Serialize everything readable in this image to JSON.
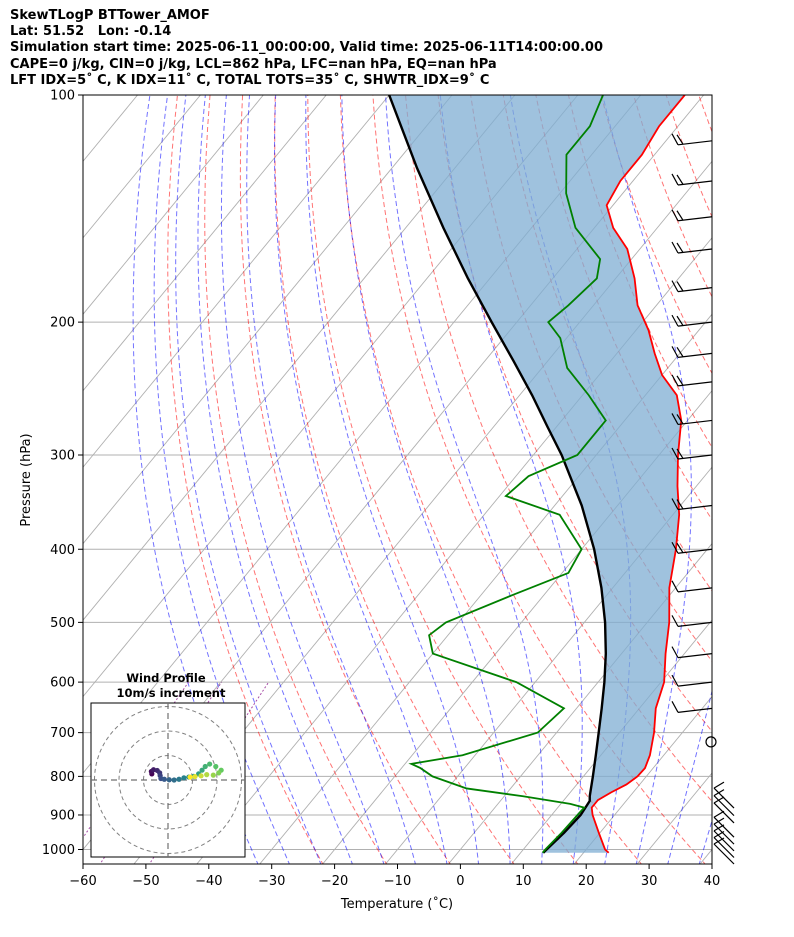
{
  "header": {
    "title": "SkewTLogP BTTower_AMOF",
    "location": "Lat: 51.52   Lon: -0.14",
    "times": "Simulation start time: 2025-06-11_00:00:00, Valid time: 2025-06-11T14:00:00.00",
    "indices1": "CAPE=0 j/kg, CIN=0 j/kg, LCL=862 hPa, LFC=nan hPa, EQ=nan hPa",
    "indices2": "LFT IDX=5˚ C, K IDX=11˚ C, TOTAL TOTS=35˚ C, SHWTR_IDX=9˚ C"
  },
  "chart_data": [
    {
      "type": "line",
      "subtype": "skew-t log-p diagram",
      "xlabel": "Temperature (˚C)",
      "ylabel": "Pressure (hPa)",
      "xlim": [
        -60,
        40
      ],
      "ylim": [
        1050,
        100
      ],
      "y_scale": "log",
      "x_ticks": [
        -60,
        -50,
        -40,
        -30,
        -20,
        -10,
        0,
        10,
        20,
        30,
        40
      ],
      "x_tick_labels": [
        "−60",
        "−50",
        "−40",
        "−30",
        "−20",
        "−10",
        "0",
        "10",
        "20",
        "30",
        "40"
      ],
      "y_ticks": [
        1000,
        900,
        800,
        700,
        600,
        500,
        400,
        300,
        200,
        100
      ],
      "y_tick_labels": [
        "1000",
        "900",
        "800",
        "700",
        "600",
        "500",
        "400",
        "300",
        "200",
        "100"
      ],
      "grid": true,
      "shaded_region": "CAPE/CIN area between temperature and parcel path",
      "colors": {
        "temperature": "#ff0000",
        "dewpoint": "#008000",
        "parcel": "#000000",
        "shade": "#7fadd3",
        "dry_adiabats": "#ff0000",
        "moist_adiabats": "#0000ff",
        "mixing_ratio": "#800080",
        "isotherms": "#808080"
      },
      "series": [
        {
          "key": "temperature",
          "color": "#ff0000",
          "points": [
            [
              1010,
              24
            ],
            [
              1000,
              23
            ],
            [
              950,
              19.8
            ],
            [
              900,
              16.5
            ],
            [
              880,
              15.4
            ],
            [
              860,
              15.4
            ],
            [
              840,
              16.5
            ],
            [
              820,
              17.9
            ],
            [
              800,
              18.6
            ],
            [
              780,
              18.7
            ],
            [
              750,
              17.8
            ],
            [
              700,
              15.5
            ],
            [
              650,
              12.6
            ],
            [
              600,
              10.5
            ],
            [
              550,
              7
            ],
            [
              500,
              3.5
            ],
            [
              450,
              -1
            ],
            [
              400,
              -5
            ],
            [
              360,
              -9
            ],
            [
              330,
              -13
            ],
            [
              300,
              -17
            ],
            [
              270,
              -21
            ],
            [
              250,
              -25
            ],
            [
              235,
              -30
            ],
            [
              220,
              -34
            ],
            [
              205,
              -38
            ],
            [
              190,
              -43
            ],
            [
              175,
              -47
            ],
            [
              160,
              -52
            ],
            [
              150,
              -57
            ],
            [
              140,
              -61
            ],
            [
              130,
              -62
            ],
            [
              120,
              -62
            ],
            [
              110,
              -63
            ],
            [
              100,
              -63
            ]
          ]
        },
        {
          "key": "dewpoint",
          "color": "#008000",
          "points": [
            [
              1010,
              13.5
            ],
            [
              1000,
              13.5
            ],
            [
              950,
              13.9
            ],
            [
              900,
              14.1
            ],
            [
              880,
              14.2
            ],
            [
              870,
              11.5
            ],
            [
              850,
              3
            ],
            [
              830,
              -7
            ],
            [
              800,
              -14
            ],
            [
              780,
              -17
            ],
            [
              770,
              -19
            ],
            [
              750,
              -12
            ],
            [
              700,
              -3
            ],
            [
              650,
              -2
            ],
            [
              600,
              -13
            ],
            [
              550,
              -30
            ],
            [
              520,
              -33
            ],
            [
              500,
              -32
            ],
            [
              460,
              -25
            ],
            [
              430,
              -19
            ],
            [
              400,
              -20
            ],
            [
              360,
              -28
            ],
            [
              340,
              -39
            ],
            [
              320,
              -38
            ],
            [
              300,
              -33
            ],
            [
              270,
              -33
            ],
            [
              250,
              -39
            ],
            [
              230,
              -46
            ],
            [
              210,
              -51
            ],
            [
              200,
              -55
            ],
            [
              190,
              -54
            ],
            [
              175,
              -53
            ],
            [
              165,
              -55
            ],
            [
              150,
              -63
            ],
            [
              135,
              -69
            ],
            [
              120,
              -74
            ],
            [
              110,
              -74
            ],
            [
              100,
              -76
            ]
          ]
        },
        {
          "key": "parcel",
          "color": "#000000",
          "points": [
            [
              1010,
              13.6
            ],
            [
              1000,
              13.7
            ],
            [
              950,
              14.3
            ],
            [
              900,
              14.6
            ],
            [
              880,
              14.4
            ],
            [
              862,
              14.2
            ],
            [
              850,
              13.6
            ],
            [
              800,
              11.5
            ],
            [
              750,
              9.2
            ],
            [
              700,
              6.7
            ],
            [
              650,
              4.0
            ],
            [
              600,
              1.0
            ],
            [
              550,
              -2.5
            ],
            [
              500,
              -6.7
            ],
            [
              450,
              -11.8
            ],
            [
              400,
              -18
            ],
            [
              350,
              -25.7
            ],
            [
              300,
              -35.5
            ],
            [
              275,
              -41.5
            ],
            [
              250,
              -48
            ],
            [
              225,
              -55.5
            ],
            [
              200,
              -64
            ],
            [
              175,
              -73.5
            ],
            [
              150,
              -84
            ],
            [
              125,
              -96
            ],
            [
              100,
              -110
            ]
          ]
        }
      ]
    },
    {
      "type": "scatter",
      "subtype": "hodograph",
      "title": "Wind Profile",
      "subtitle": "10m/s increment",
      "ring_increment": 10,
      "grid": true,
      "colors": {
        "low": "#440154",
        "mid": "#21918c",
        "high": "#fde725"
      },
      "points": [
        [
          -6.6,
          2.5
        ],
        [
          -6.8,
          3.5
        ],
        [
          -5.9,
          4.2
        ],
        [
          -4.4,
          3.9
        ],
        [
          -3.4,
          2.9
        ],
        [
          -3.2,
          1.8
        ],
        [
          -2.9,
          0.6
        ],
        [
          -1.5,
          0.3
        ],
        [
          0.5,
          0.1
        ],
        [
          2.5,
          0
        ],
        [
          4.5,
          0.3
        ],
        [
          6.5,
          0.9
        ],
        [
          8.5,
          1.2
        ],
        [
          10.5,
          1.5
        ],
        [
          12.5,
          2.5
        ],
        [
          13.9,
          4
        ],
        [
          15.2,
          5.5
        ],
        [
          17.0,
          6.5
        ],
        [
          19.5,
          5.5
        ],
        [
          21.7,
          4
        ],
        [
          20.7,
          2.9
        ],
        [
          18.5,
          2.0
        ],
        [
          15.8,
          2.2
        ],
        [
          13.5,
          1.7
        ],
        [
          11,
          1.4
        ],
        [
          9,
          1.2
        ]
      ]
    }
  ],
  "wind_barbs": {
    "pressure_levels": [
      1020,
      1000,
      980,
      960,
      940,
      900,
      880,
      860,
      720,
      650,
      600,
      550,
      500,
      450,
      400,
      350,
      300,
      270,
      240,
      220,
      200,
      180,
      160,
      145,
      130,
      115
    ],
    "calm_symbol_at": 720
  }
}
